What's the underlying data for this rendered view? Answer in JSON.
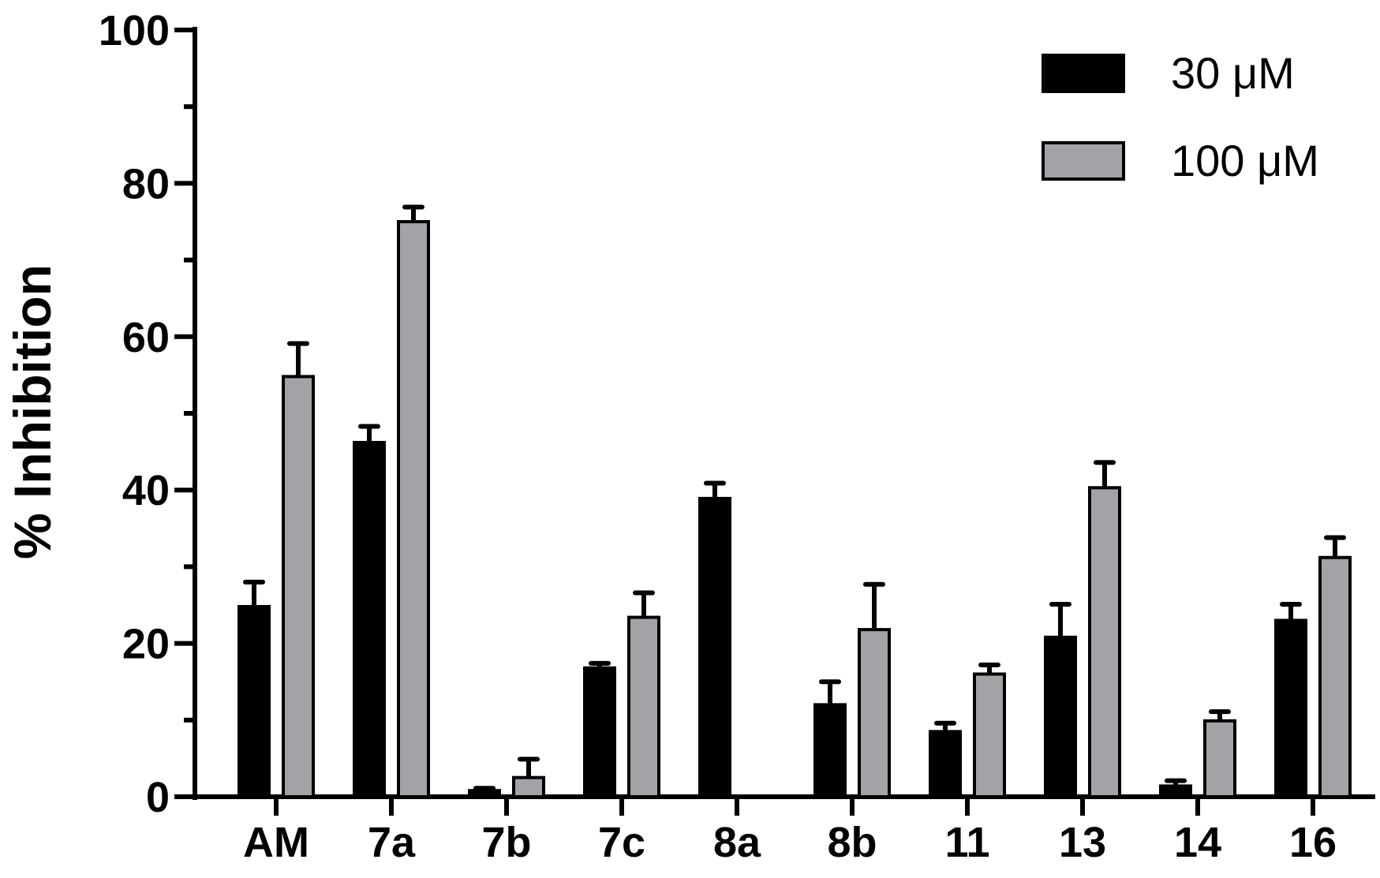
{
  "chart_data": {
    "type": "bar",
    "title": "",
    "xlabel": "",
    "ylabel": "% Inhibition",
    "ylim": [
      0,
      100
    ],
    "yticks_major": [
      0,
      20,
      40,
      60,
      80,
      100
    ],
    "yticks_minor": [
      10,
      30,
      50,
      70,
      90
    ],
    "legend_position": "top-right",
    "grid": false,
    "categories": [
      "AM",
      "7a",
      "7b",
      "7c",
      "8a",
      "8b",
      "11",
      "13",
      "14",
      "16"
    ],
    "series": [
      {
        "name": "30 μM",
        "color": "#000000",
        "values": [
          24.8,
          46.2,
          0.8,
          16.8,
          38.9,
          12.0,
          8.5,
          20.8,
          1.4,
          23.0
        ],
        "errors": [
          3.2,
          2.1,
          0.3,
          0.6,
          2.0,
          3.0,
          1.1,
          4.3,
          0.7,
          2.1
        ]
      },
      {
        "name": "100 μM",
        "color": "#a2a3a7",
        "values": [
          54.8,
          75.0,
          2.5,
          23.4,
          0,
          21.8,
          16.0,
          40.3,
          9.9,
          31.2
        ],
        "errors": [
          4.3,
          1.9,
          2.4,
          3.2,
          0,
          5.9,
          1.2,
          3.3,
          1.2,
          2.6
        ]
      }
    ]
  }
}
